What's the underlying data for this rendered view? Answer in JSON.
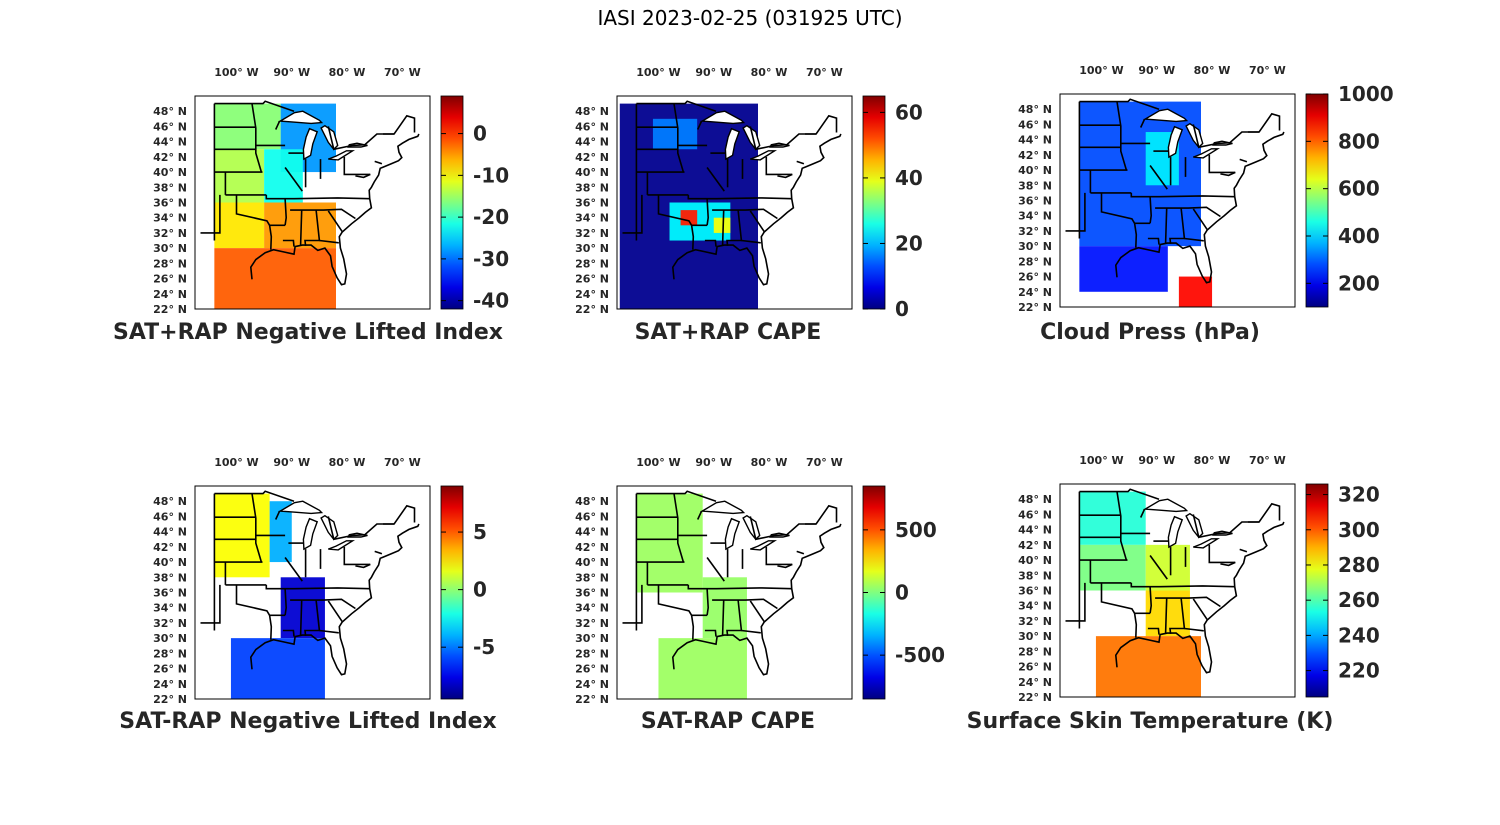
{
  "figure_title": "IASI 2023-02-25 (031925 UTC)",
  "colormap": "jet",
  "colors": {
    "ocean": "#ffffff",
    "land_outline": "#000000",
    "label_text": "#262626"
  },
  "chart_data": [
    {
      "type": "heatmap",
      "id": "p1",
      "title": "SAT+RAP Negative Lifted Index",
      "colorbar": {
        "range": [
          -42,
          9
        ],
        "ticks": [
          -40,
          -30,
          -20,
          -10,
          0
        ],
        "tick_labels": [
          "-40",
          "-30",
          "-20",
          "-10",
          "0"
        ]
      },
      "lon_ticks": [
        "100° W",
        "90° W",
        "80° W",
        "70° W"
      ],
      "lat_ticks": [
        "48° N",
        "46° N",
        "44° N",
        "42° N",
        "40° N",
        "38° N",
        "36° N",
        "34° N",
        "32° N",
        "30° N",
        "28° N",
        "26° N",
        "24° N",
        "22° N"
      ],
      "regions": [
        {
          "lon": [
            -104,
            -92
          ],
          "lat": [
            43,
            49
          ],
          "value": -16
        },
        {
          "lon": [
            -92,
            -82
          ],
          "lat": [
            40,
            49
          ],
          "value": -28
        },
        {
          "lon": [
            -104,
            -95
          ],
          "lat": [
            36,
            43
          ],
          "value": -14
        },
        {
          "lon": [
            -95,
            -88
          ],
          "lat": [
            36,
            43
          ],
          "value": -22
        },
        {
          "lon": [
            -104,
            -95
          ],
          "lat": [
            30,
            36
          ],
          "value": -9
        },
        {
          "lon": [
            -95,
            -82
          ],
          "lat": [
            30,
            36
          ],
          "value": -5
        },
        {
          "lon": [
            -104,
            -82
          ],
          "lat": [
            22,
            30
          ],
          "value": -2
        }
      ]
    },
    {
      "type": "heatmap",
      "id": "p2",
      "title": "SAT+RAP CAPE",
      "colorbar": {
        "range": [
          0,
          65
        ],
        "ticks": [
          0,
          20,
          40,
          60
        ],
        "tick_labels": [
          "0",
          "20",
          "40",
          "60"
        ]
      },
      "lon_ticks": [
        "100° W",
        "90° W",
        "80° W",
        "70° W"
      ],
      "lat_ticks": [
        "48° N",
        "46° N",
        "44° N",
        "42° N",
        "40° N",
        "38° N",
        "36° N",
        "34° N",
        "32° N",
        "30° N",
        "28° N",
        "26° N",
        "24° N",
        "22° N"
      ],
      "regions": [
        {
          "lon": [
            -107,
            -82
          ],
          "lat": [
            22,
            49
          ],
          "value": 1
        },
        {
          "lon": [
            -101,
            -93
          ],
          "lat": [
            43,
            47
          ],
          "value": 16
        },
        {
          "lon": [
            -98,
            -87
          ],
          "lat": [
            31,
            36
          ],
          "value": 24
        },
        {
          "lon": [
            -96,
            -93
          ],
          "lat": [
            33,
            35
          ],
          "value": 55
        },
        {
          "lon": [
            -90,
            -87
          ],
          "lat": [
            32,
            34
          ],
          "value": 40
        }
      ]
    },
    {
      "type": "heatmap",
      "id": "p3",
      "title": "Cloud Press (hPa)",
      "colorbar": {
        "range": [
          100,
          1000
        ],
        "ticks": [
          200,
          400,
          600,
          800,
          1000
        ],
        "tick_labels": [
          "200",
          "400",
          "600",
          "800",
          "1000"
        ]
      },
      "lon_ticks": [
        "100° W",
        "90° W",
        "80° W",
        "70° W"
      ],
      "lat_ticks": [
        "48° N",
        "46° N",
        "44° N",
        "42° N",
        "40° N",
        "38° N",
        "36° N",
        "34° N",
        "32° N",
        "30° N",
        "28° N",
        "26° N",
        "24° N",
        "22° N"
      ],
      "regions": [
        {
          "lon": [
            -104,
            -82
          ],
          "lat": [
            30,
            49
          ],
          "value": 280
        },
        {
          "lon": [
            -92,
            -86
          ],
          "lat": [
            38,
            45
          ],
          "value": 420
        },
        {
          "lon": [
            -104,
            -88
          ],
          "lat": [
            24,
            30
          ],
          "value": 230
        },
        {
          "lon": [
            -86,
            -80
          ],
          "lat": [
            22,
            26
          ],
          "value": 880
        }
      ]
    },
    {
      "type": "heatmap",
      "id": "p4",
      "title": "SAT-RAP Negative Lifted Index",
      "colorbar": {
        "range": [
          -9.5,
          9
        ],
        "ticks": [
          -5,
          0,
          5
        ],
        "tick_labels": [
          "-5",
          "0",
          "5"
        ]
      },
      "lon_ticks": [
        "100° W",
        "90° W",
        "80° W",
        "70° W"
      ],
      "lat_ticks": [
        "48° N",
        "46° N",
        "44° N",
        "42° N",
        "40° N",
        "38° N",
        "36° N",
        "34° N",
        "32° N",
        "30° N",
        "28° N",
        "26° N",
        "24° N",
        "22° N"
      ],
      "regions": [
        {
          "lon": [
            -104,
            -94
          ],
          "lat": [
            38,
            49
          ],
          "value": 2
        },
        {
          "lon": [
            -94,
            -90
          ],
          "lat": [
            40,
            48
          ],
          "value": -4
        },
        {
          "lon": [
            -92,
            -84
          ],
          "lat": [
            30,
            38
          ],
          "value": -8
        },
        {
          "lon": [
            -101,
            -84
          ],
          "lat": [
            22,
            30
          ],
          "value": -6
        }
      ]
    },
    {
      "type": "heatmap",
      "id": "p5",
      "title": "SAT-RAP CAPE",
      "colorbar": {
        "range": [
          -850,
          850
        ],
        "ticks": [
          -500,
          0,
          500
        ],
        "tick_labels": [
          "-500",
          "0",
          "500"
        ]
      },
      "lon_ticks": [
        "100° W",
        "90° W",
        "80° W",
        "70° W"
      ],
      "lat_ticks": [
        "48° N",
        "46° N",
        "44° N",
        "42° N",
        "40° N",
        "38° N",
        "36° N",
        "34° N",
        "32° N",
        "30° N",
        "28° N",
        "26° N",
        "24° N",
        "22° N"
      ],
      "regions": [
        {
          "lon": [
            -104,
            -92
          ],
          "lat": [
            36,
            49
          ],
          "value": 50
        },
        {
          "lon": [
            -100,
            -84
          ],
          "lat": [
            22,
            30
          ],
          "value": 50
        },
        {
          "lon": [
            -92,
            -84
          ],
          "lat": [
            30,
            38
          ],
          "value": 40
        }
      ]
    },
    {
      "type": "heatmap",
      "id": "p6",
      "title": "Surface Skin Temperature (K)",
      "colorbar": {
        "range": [
          205,
          326
        ],
        "ticks": [
          220,
          240,
          260,
          280,
          300,
          320
        ],
        "tick_labels": [
          "220",
          "240",
          "260",
          "280",
          "300",
          "320"
        ]
      },
      "lon_ticks": [
        "100° W",
        "90° W",
        "80° W",
        "70° W"
      ],
      "lat_ticks": [
        "48° N",
        "46° N",
        "44° N",
        "42° N",
        "40° N",
        "38° N",
        "36° N",
        "34° N",
        "32° N",
        "30° N",
        "28° N",
        "26° N",
        "24° N",
        "22° N"
      ],
      "regions": [
        {
          "lon": [
            -104,
            -92
          ],
          "lat": [
            42,
            49
          ],
          "value": 255
        },
        {
          "lon": [
            -104,
            -92
          ],
          "lat": [
            36,
            42
          ],
          "value": 265
        },
        {
          "lon": [
            -92,
            -84
          ],
          "lat": [
            36,
            42
          ],
          "value": 275
        },
        {
          "lon": [
            -92,
            -84
          ],
          "lat": [
            30,
            36
          ],
          "value": 285
        },
        {
          "lon": [
            -101,
            -82
          ],
          "lat": [
            22,
            30
          ],
          "value": 297
        }
      ]
    }
  ]
}
